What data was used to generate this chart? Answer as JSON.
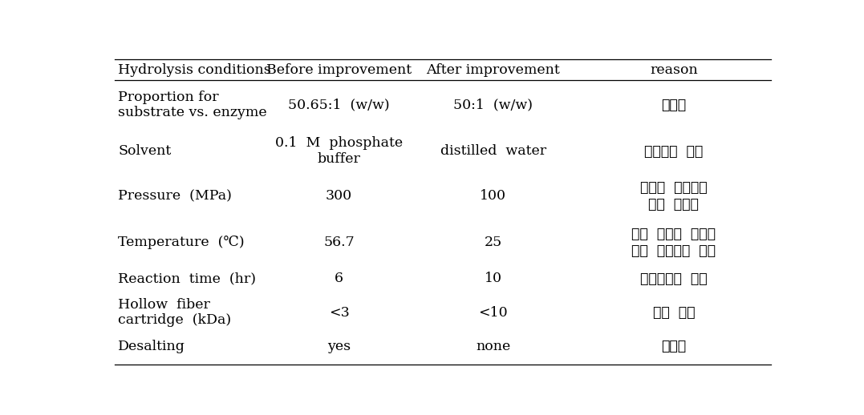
{
  "headers": [
    "Hydrolysis conditions",
    "Before improvement",
    "After improvement",
    "reason"
  ],
  "rows": [
    {
      "condition": "Proportion for\nsubstrate vs. enzyme",
      "before": "50.65:1  (w/w)",
      "after": "50:1  (w/w)",
      "reason": "단순화"
    },
    {
      "condition": "Solvent",
      "before": "0.1  M  phosphate\nbuffer",
      "after": "distilled  water",
      "reason": "탈염공정  제외"
    },
    {
      "condition": "Pressure  (MPa)",
      "before": "300",
      "after": "100",
      "reason": "초고압  반응기의\n운용  용이성"
    },
    {
      "condition": "Temperature  (℃)",
      "before": "56.7",
      "after": "25",
      "reason": "대량  생산용  장비가\n온도  조절기능  없음"
    },
    {
      "condition": "Reaction  time  (hr)",
      "before": "6",
      "after": "10",
      "reason": "가수분해율  증가"
    },
    {
      "condition": "Hollow  fiber\ncartridge  (kDa)",
      "before": "<3",
      "after": "<10",
      "reason": "수율  증가"
    },
    {
      "condition": "Desalting",
      "before": "yes",
      "after": "none",
      "reason": "단순화"
    }
  ],
  "background_color": "#ffffff",
  "text_color": "#000000",
  "header_fontsize": 12.5,
  "body_fontsize": 12.5,
  "fig_width": 10.77,
  "fig_height": 5.18
}
